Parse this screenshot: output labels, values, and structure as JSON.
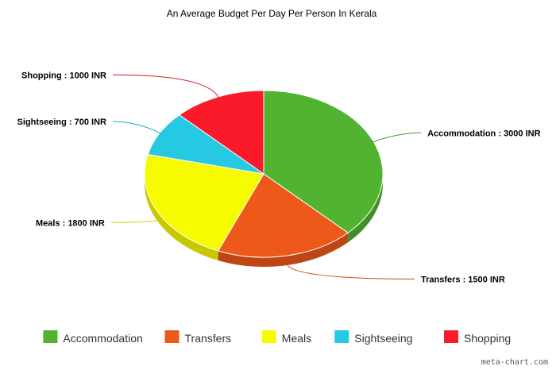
{
  "chart_data": {
    "type": "pie",
    "title": "An Average Budget Per Day Per Person In Kerala",
    "slices": [
      {
        "name": "Accommodation",
        "value": 3000,
        "label": "Accommodation : 3000 INR",
        "color": "#52b331"
      },
      {
        "name": "Transfers",
        "value": 1500,
        "label": "Transfers : 1500 INR",
        "color": "#ec5919"
      },
      {
        "name": "Meals",
        "value": 1800,
        "label": "Meals : 1800 INR",
        "color": "#f7fb00"
      },
      {
        "name": "Sightseeing",
        "value": 700,
        "label": "Sightseeing : 700 INR",
        "color": "#25c9e2"
      },
      {
        "name": "Shopping",
        "value": 1000,
        "label": "Shopping : 1000 INR",
        "color": "#fb1a2a"
      }
    ],
    "legend_position": "bottom"
  },
  "credit": "meta-chart.com"
}
